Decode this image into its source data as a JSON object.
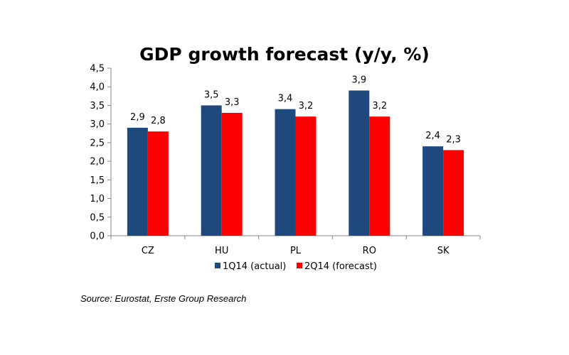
{
  "chart_data": {
    "type": "bar",
    "title": "GDP growth forecast (y/y, %)",
    "categories": [
      "CZ",
      "HU",
      "PL",
      "RO",
      "SK"
    ],
    "series": [
      {
        "name": "1Q14 (actual)",
        "values": [
          2.9,
          3.5,
          3.4,
          3.9,
          2.4
        ],
        "color": "#1F497D"
      },
      {
        "name": "2Q14 (forecast)",
        "values": [
          2.8,
          3.3,
          3.2,
          3.2,
          2.3
        ],
        "color": "#FF0000"
      }
    ],
    "data_labels": [
      [
        "2,9",
        "3,5",
        "3,4",
        "3,9",
        "2,4"
      ],
      [
        "2,8",
        "3,3",
        "3,2",
        "3,2",
        "2,3"
      ]
    ],
    "ylim": [
      0,
      4.5
    ],
    "yticks": [
      0,
      0.5,
      1,
      1.5,
      2,
      2.5,
      3,
      3.5,
      4,
      4.5
    ],
    "ytick_labels": [
      "0,0",
      "0,5",
      "1,0",
      "1,5",
      "2,0",
      "2,5",
      "3,0",
      "3,5",
      "4,0",
      "4,5"
    ],
    "xlabel": "",
    "ylabel": "",
    "grid": false,
    "legend": "bottom"
  },
  "source": "Source: Eurostat, Erste Group Research"
}
